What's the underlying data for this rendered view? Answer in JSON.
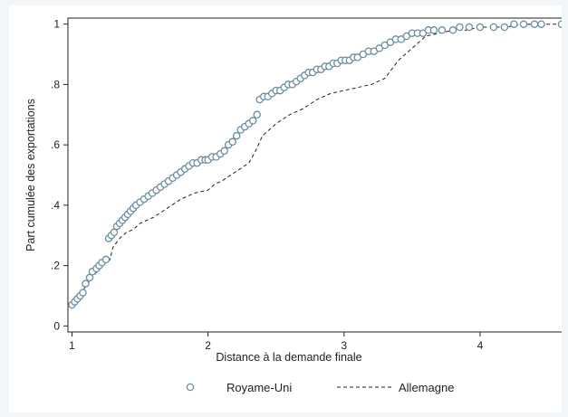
{
  "chart_data": {
    "type": "line",
    "title": "",
    "xlabel": "Distance à la demande finale",
    "ylabel": "Part cumulée des exportations",
    "xlim": [
      0.97,
      4.62
    ],
    "ylim": [
      -0.02,
      1.02
    ],
    "x_ticks": [
      1,
      2,
      3,
      4
    ],
    "x_tick_labels": [
      "1",
      "2",
      "3",
      "4"
    ],
    "y_ticks": [
      0,
      0.2,
      0.4,
      0.6,
      0.8,
      1
    ],
    "y_tick_labels": [
      "0",
      ".2",
      ".4",
      ".6",
      ".8",
      "1"
    ],
    "grid": false,
    "legend_position": "bottom",
    "series": [
      {
        "name": "Royame-Uni",
        "style": "hollow-circle-markers",
        "color": "#6b8fa0",
        "x": [
          1.0,
          1.02,
          1.04,
          1.06,
          1.08,
          1.1,
          1.13,
          1.15,
          1.18,
          1.2,
          1.22,
          1.25,
          1.27,
          1.29,
          1.31,
          1.33,
          1.35,
          1.37,
          1.39,
          1.41,
          1.43,
          1.45,
          1.47,
          1.5,
          1.53,
          1.56,
          1.59,
          1.62,
          1.65,
          1.68,
          1.71,
          1.74,
          1.77,
          1.8,
          1.83,
          1.86,
          1.89,
          1.92,
          1.95,
          1.98,
          2.0,
          2.03,
          2.06,
          2.09,
          2.12,
          2.15,
          2.18,
          2.21,
          2.24,
          2.27,
          2.3,
          2.33,
          2.36,
          2.38,
          2.41,
          2.44,
          2.47,
          2.5,
          2.53,
          2.56,
          2.59,
          2.62,
          2.65,
          2.68,
          2.71,
          2.74,
          2.77,
          2.8,
          2.83,
          2.86,
          2.89,
          2.92,
          2.95,
          2.98,
          3.01,
          3.04,
          3.07,
          3.1,
          3.14,
          3.18,
          3.22,
          3.26,
          3.3,
          3.34,
          3.38,
          3.42,
          3.46,
          3.5,
          3.54,
          3.58,
          3.62,
          3.66,
          3.72,
          3.8,
          3.85,
          3.92,
          4.0,
          4.1,
          4.18,
          4.25,
          4.32,
          4.4,
          4.45,
          4.6
        ],
        "y": [
          0.07,
          0.08,
          0.09,
          0.1,
          0.11,
          0.14,
          0.16,
          0.18,
          0.19,
          0.2,
          0.21,
          0.22,
          0.29,
          0.3,
          0.31,
          0.33,
          0.34,
          0.35,
          0.36,
          0.37,
          0.38,
          0.39,
          0.4,
          0.41,
          0.42,
          0.43,
          0.44,
          0.45,
          0.46,
          0.47,
          0.48,
          0.49,
          0.5,
          0.51,
          0.52,
          0.53,
          0.54,
          0.54,
          0.55,
          0.55,
          0.55,
          0.56,
          0.56,
          0.57,
          0.58,
          0.6,
          0.61,
          0.63,
          0.65,
          0.66,
          0.67,
          0.68,
          0.7,
          0.75,
          0.76,
          0.76,
          0.77,
          0.78,
          0.78,
          0.79,
          0.8,
          0.8,
          0.81,
          0.82,
          0.83,
          0.84,
          0.84,
          0.85,
          0.85,
          0.86,
          0.86,
          0.87,
          0.87,
          0.88,
          0.88,
          0.88,
          0.89,
          0.89,
          0.9,
          0.91,
          0.91,
          0.92,
          0.93,
          0.94,
          0.95,
          0.95,
          0.96,
          0.97,
          0.97,
          0.97,
          0.98,
          0.98,
          0.98,
          0.98,
          0.99,
          0.99,
          0.99,
          0.99,
          0.99,
          1.0,
          1.0,
          1.0,
          1.0,
          1.0
        ]
      },
      {
        "name": "Allemagne",
        "style": "dashed-line",
        "color": "#222222",
        "x": [
          1.0,
          1.05,
          1.1,
          1.15,
          1.2,
          1.25,
          1.28,
          1.3,
          1.35,
          1.4,
          1.45,
          1.5,
          1.55,
          1.6,
          1.7,
          1.8,
          1.9,
          2.0,
          2.05,
          2.1,
          2.2,
          2.3,
          2.35,
          2.4,
          2.45,
          2.5,
          2.6,
          2.7,
          2.8,
          2.9,
          3.0,
          3.1,
          3.2,
          3.3,
          3.35,
          3.4,
          3.5,
          3.55,
          3.6,
          3.7,
          3.8,
          3.9,
          4.0,
          4.1,
          4.2,
          4.3,
          4.4,
          4.6
        ],
        "y": [
          0.07,
          0.1,
          0.13,
          0.16,
          0.19,
          0.21,
          0.22,
          0.26,
          0.29,
          0.31,
          0.32,
          0.34,
          0.35,
          0.36,
          0.39,
          0.42,
          0.44,
          0.45,
          0.47,
          0.48,
          0.51,
          0.54,
          0.58,
          0.63,
          0.65,
          0.67,
          0.7,
          0.72,
          0.75,
          0.77,
          0.78,
          0.79,
          0.8,
          0.82,
          0.85,
          0.88,
          0.92,
          0.94,
          0.96,
          0.97,
          0.98,
          0.98,
          0.99,
          0.99,
          0.99,
          1.0,
          1.0,
          1.0
        ]
      }
    ]
  }
}
